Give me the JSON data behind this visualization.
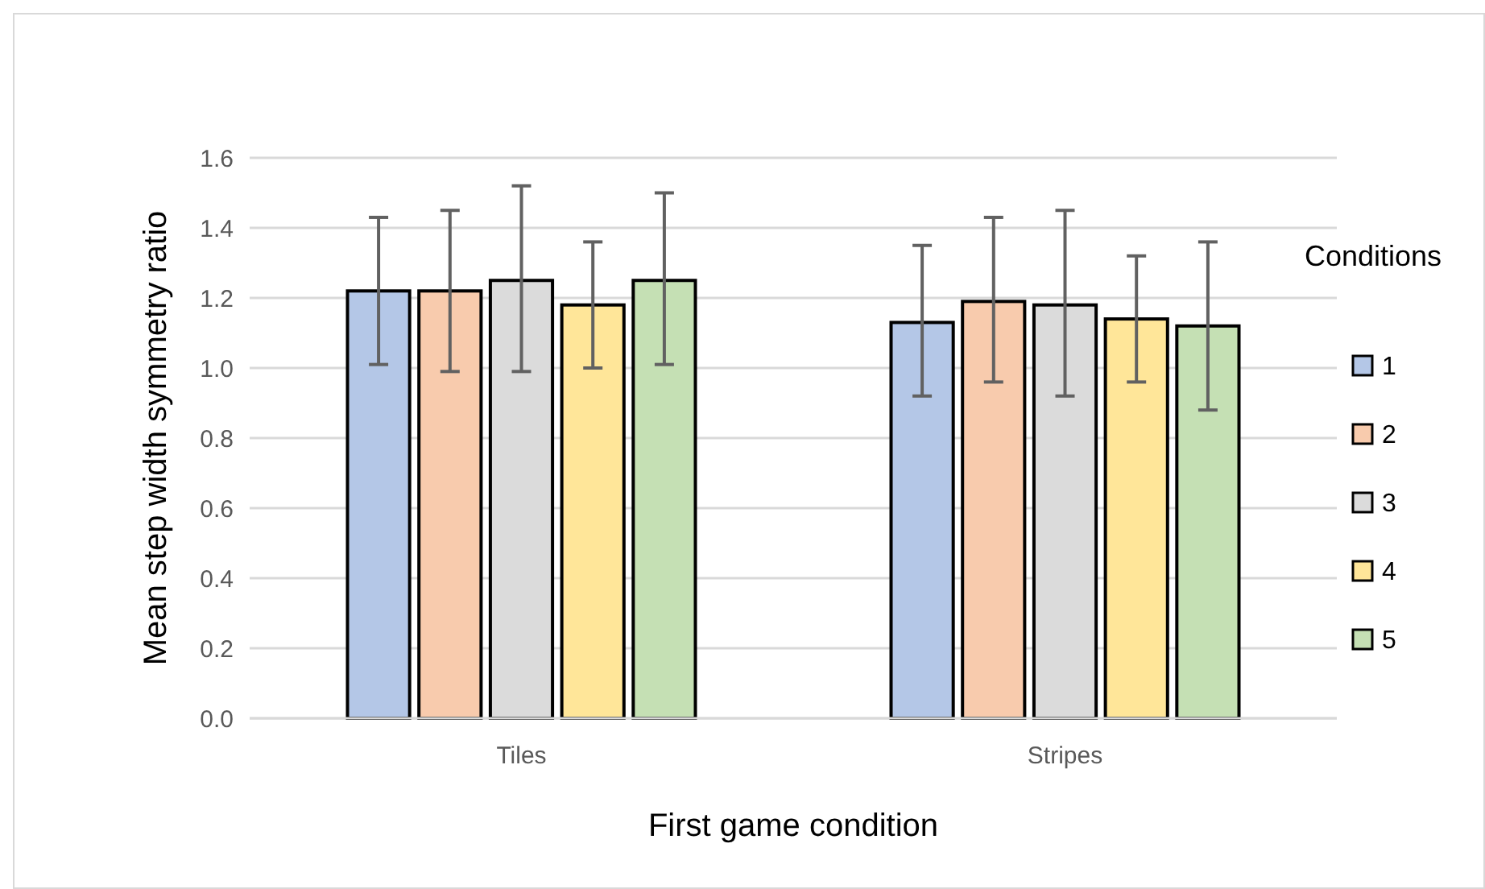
{
  "chart_data": {
    "type": "bar",
    "xlabel": "First game condition",
    "ylabel": "Mean step width symmetry ratio",
    "legend_title": "Conditions",
    "legend": "right",
    "grid": "y",
    "categories": [
      "Tiles",
      "Stripes"
    ],
    "ylim": [
      0,
      1.6
    ],
    "yticks": [
      {
        "value": 0,
        "label": "0.0"
      },
      {
        "value": 0.2,
        "label": "0.2"
      },
      {
        "value": 0.4,
        "label": "0.4"
      },
      {
        "value": 0.6,
        "label": "0.6"
      },
      {
        "value": 0.8,
        "label": "0.8"
      },
      {
        "value": 1,
        "label": "1.0"
      },
      {
        "value": 1.2,
        "label": "1.2"
      },
      {
        "value": 1.4,
        "label": "1.4"
      },
      {
        "value": 1.6,
        "label": "1.6"
      }
    ],
    "series": [
      {
        "name": "1",
        "color": "#b4c7e7",
        "values": [
          1.22,
          1.13
        ],
        "errors": [
          [
            1.01,
            1.43
          ],
          [
            0.92,
            1.35
          ]
        ]
      },
      {
        "name": "2",
        "color": "#f8cbad",
        "values": [
          1.22,
          1.19
        ],
        "errors": [
          [
            0.99,
            1.45
          ],
          [
            0.96,
            1.43
          ]
        ]
      },
      {
        "name": "3",
        "color": "#dbdbdb",
        "values": [
          1.25,
          1.18
        ],
        "errors": [
          [
            0.99,
            1.52
          ],
          [
            0.92,
            1.45
          ]
        ]
      },
      {
        "name": "4",
        "color": "#ffe699",
        "values": [
          1.18,
          1.14
        ],
        "errors": [
          [
            1.0,
            1.36
          ],
          [
            0.96,
            1.32
          ]
        ]
      },
      {
        "name": "5",
        "color": "#c5e0b4",
        "values": [
          1.25,
          1.12
        ],
        "errors": [
          [
            1.01,
            1.5
          ],
          [
            0.88,
            1.36
          ]
        ]
      }
    ]
  }
}
